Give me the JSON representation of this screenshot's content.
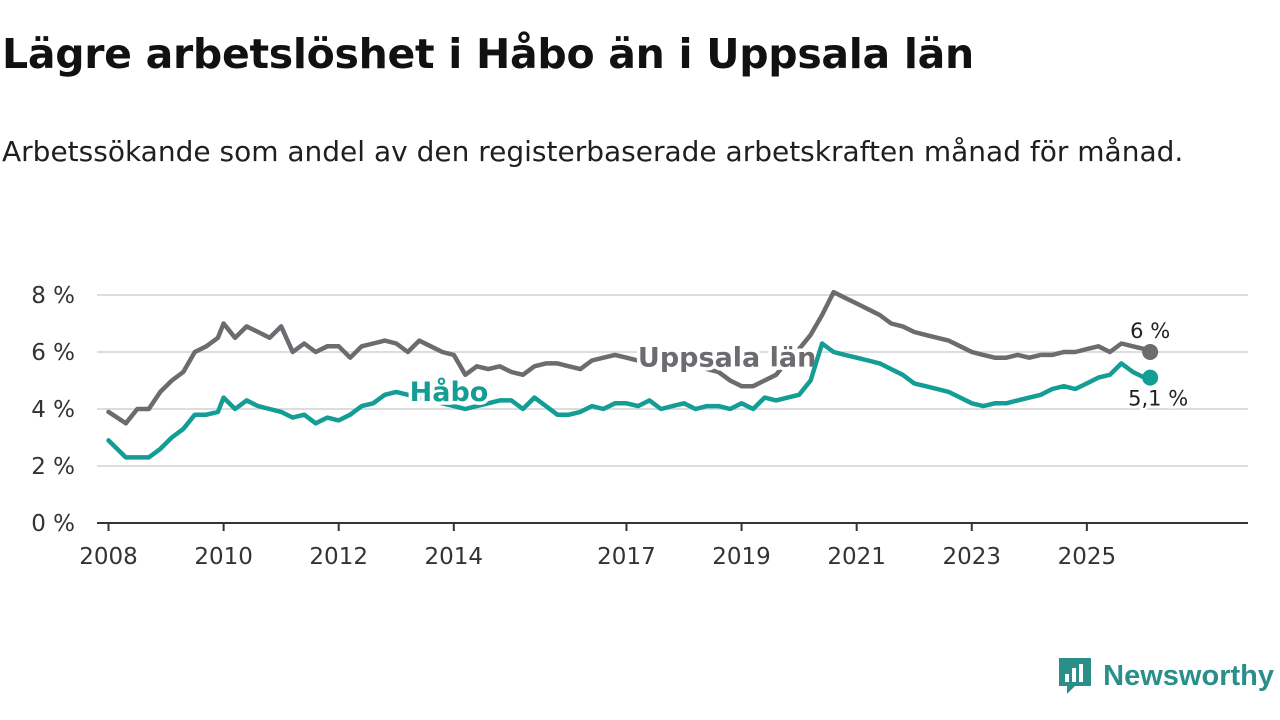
{
  "title": "Lägre arbetslöshet i Håbo än i Uppsala län",
  "subtitle": "Arbetssökande som andel av den registerbaserade arbetskraften månad för månad.",
  "brand": {
    "name": "Newsworthy",
    "icon": "newsworthy-logo-icon"
  },
  "colors": {
    "uppsala": "#6d6b70",
    "habo": "#139d95",
    "grid": "#dddddd",
    "axis": "#333333"
  },
  "chart_data": {
    "type": "line",
    "title": "Lägre arbetslöshet i Håbo än i Uppsala län",
    "ylabel": "",
    "xlabel": "",
    "ylim": [
      0,
      8
    ],
    "xlim": [
      2007.8,
      2027.8
    ],
    "y_ticks": [
      0,
      2,
      4,
      6,
      8
    ],
    "y_tick_labels": [
      "0 %",
      "2 %",
      "4 %",
      "6 %",
      "8 %"
    ],
    "x_ticks": [
      2008,
      2010,
      2012,
      2014,
      2017,
      2019,
      2021,
      2023,
      2025
    ],
    "x_tick_labels": [
      "2008",
      "2010",
      "2012",
      "2014",
      "2017",
      "2019",
      "2021",
      "2023",
      "2025"
    ],
    "series": [
      {
        "name": "Uppsala län",
        "label": "Uppsala län",
        "end_label": "6 %",
        "x": [
          2008.0,
          2008.3,
          2008.5,
          2008.7,
          2008.9,
          2009.1,
          2009.3,
          2009.5,
          2009.7,
          2009.9,
          2010.0,
          2010.2,
          2010.4,
          2010.6,
          2010.8,
          2011.0,
          2011.2,
          2011.4,
          2011.6,
          2011.8,
          2012.0,
          2012.2,
          2012.4,
          2012.6,
          2012.8,
          2013.0,
          2013.2,
          2013.4,
          2013.6,
          2013.8,
          2014.0,
          2014.2,
          2014.4,
          2014.6,
          2014.8,
          2015.0,
          2015.2,
          2015.4,
          2015.6,
          2015.8,
          2016.0,
          2016.2,
          2016.4,
          2016.6,
          2016.8,
          2017.0,
          2017.2,
          2017.4,
          2017.6,
          2017.8,
          2018.0,
          2018.2,
          2018.4,
          2018.6,
          2018.8,
          2019.0,
          2019.2,
          2019.4,
          2019.6,
          2019.8,
          2020.0,
          2020.2,
          2020.4,
          2020.6,
          2020.8,
          2021.0,
          2021.2,
          2021.4,
          2021.6,
          2021.8,
          2022.0,
          2022.2,
          2022.4,
          2022.6,
          2022.8,
          2023.0,
          2023.2,
          2023.4,
          2023.6,
          2023.8,
          2024.0,
          2024.2,
          2024.4,
          2024.6,
          2024.8,
          2025.0,
          2025.2,
          2025.4,
          2025.6,
          2025.8,
          2026.0,
          2026.1
        ],
        "y": [
          3.9,
          3.5,
          4.0,
          4.0,
          4.6,
          5.0,
          5.3,
          6.0,
          6.2,
          6.5,
          7.0,
          6.5,
          6.9,
          6.7,
          6.5,
          6.9,
          6.0,
          6.3,
          6.0,
          6.2,
          6.2,
          5.8,
          6.2,
          6.3,
          6.4,
          6.3,
          6.0,
          6.4,
          6.2,
          6.0,
          5.9,
          5.2,
          5.5,
          5.4,
          5.5,
          5.3,
          5.2,
          5.5,
          5.6,
          5.6,
          5.5,
          5.4,
          5.7,
          5.8,
          5.9,
          5.8,
          5.7,
          5.8,
          5.9,
          6.0,
          5.9,
          5.7,
          5.4,
          5.3,
          5.0,
          4.8,
          4.8,
          5.0,
          5.2,
          5.7,
          6.1,
          6.6,
          7.3,
          8.1,
          7.9,
          7.7,
          7.5,
          7.3,
          7.0,
          6.9,
          6.7,
          6.6,
          6.5,
          6.4,
          6.2,
          6.0,
          5.9,
          5.8,
          5.8,
          5.9,
          5.8,
          5.9,
          5.9,
          6.0,
          6.0,
          6.1,
          6.2,
          6.0,
          6.3,
          6.2,
          6.1,
          6.0
        ]
      },
      {
        "name": "Håbo",
        "label": "Håbo",
        "end_label": "5,1 %",
        "x": [
          2008.0,
          2008.3,
          2008.5,
          2008.7,
          2008.9,
          2009.1,
          2009.3,
          2009.5,
          2009.7,
          2009.9,
          2010.0,
          2010.2,
          2010.4,
          2010.6,
          2010.8,
          2011.0,
          2011.2,
          2011.4,
          2011.6,
          2011.8,
          2012.0,
          2012.2,
          2012.4,
          2012.6,
          2012.8,
          2013.0,
          2013.2,
          2013.4,
          2013.6,
          2013.8,
          2014.0,
          2014.2,
          2014.4,
          2014.6,
          2014.8,
          2015.0,
          2015.2,
          2015.4,
          2015.6,
          2015.8,
          2016.0,
          2016.2,
          2016.4,
          2016.6,
          2016.8,
          2017.0,
          2017.2,
          2017.4,
          2017.6,
          2017.8,
          2018.0,
          2018.2,
          2018.4,
          2018.6,
          2018.8,
          2019.0,
          2019.2,
          2019.4,
          2019.6,
          2019.8,
          2020.0,
          2020.2,
          2020.4,
          2020.6,
          2020.8,
          2021.0,
          2021.2,
          2021.4,
          2021.6,
          2021.8,
          2022.0,
          2022.2,
          2022.4,
          2022.6,
          2022.8,
          2023.0,
          2023.2,
          2023.4,
          2023.6,
          2023.8,
          2024.0,
          2024.2,
          2024.4,
          2024.6,
          2024.8,
          2025.0,
          2025.2,
          2025.4,
          2025.6,
          2025.8,
          2026.0,
          2026.1
        ],
        "y": [
          2.9,
          2.3,
          2.3,
          2.3,
          2.6,
          3.0,
          3.3,
          3.8,
          3.8,
          3.9,
          4.4,
          4.0,
          4.3,
          4.1,
          4.0,
          3.9,
          3.7,
          3.8,
          3.5,
          3.7,
          3.6,
          3.8,
          4.1,
          4.2,
          4.5,
          4.6,
          4.5,
          4.4,
          4.3,
          4.2,
          4.1,
          4.0,
          4.1,
          4.2,
          4.3,
          4.3,
          4.0,
          4.4,
          4.1,
          3.8,
          3.8,
          3.9,
          4.1,
          4.0,
          4.2,
          4.2,
          4.1,
          4.3,
          4.0,
          4.1,
          4.2,
          4.0,
          4.1,
          4.1,
          4.0,
          4.2,
          4.0,
          4.4,
          4.3,
          4.4,
          4.5,
          5.0,
          6.3,
          6.0,
          5.9,
          5.8,
          5.7,
          5.6,
          5.4,
          5.2,
          4.9,
          4.8,
          4.7,
          4.6,
          4.4,
          4.2,
          4.1,
          4.2,
          4.2,
          4.3,
          4.4,
          4.5,
          4.7,
          4.8,
          4.7,
          4.9,
          5.1,
          5.2,
          5.6,
          5.3,
          5.1,
          5.1
        ]
      }
    ]
  }
}
